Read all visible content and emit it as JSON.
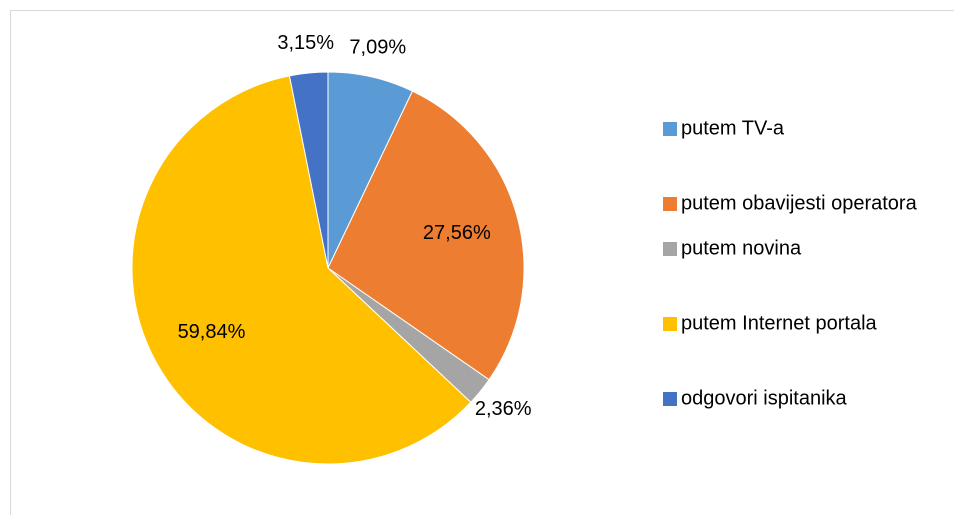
{
  "chart_data": {
    "type": "pie",
    "categories": [
      "putem TV-a",
      "putem obavijesti operatora",
      "putem novina",
      "putem Internet portala",
      "odgovori ispitanika"
    ],
    "values": [
      7.09,
      27.56,
      2.36,
      59.84,
      3.15
    ],
    "value_labels": [
      "7,09%",
      "27,56%",
      "2,36%",
      "59,84%",
      "3,15%"
    ],
    "colors": [
      "#5b9bd5",
      "#ed7d31",
      "#a5a5a5",
      "#ffc000",
      "#4472c4"
    ],
    "legend": "right"
  }
}
